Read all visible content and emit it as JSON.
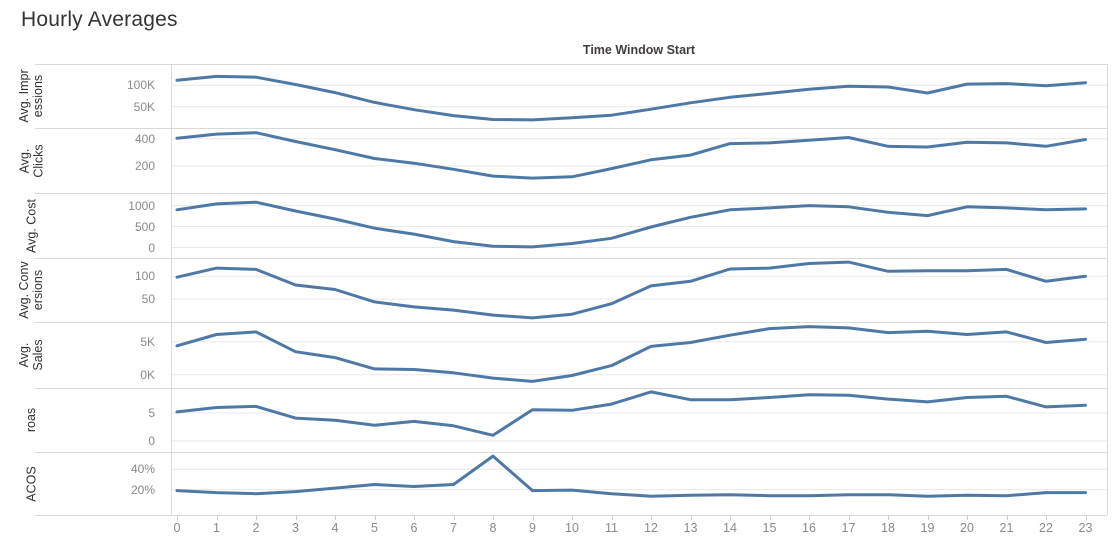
{
  "title": "Hourly Averages",
  "chart_data": {
    "type": "line",
    "title": "Hourly Averages",
    "x_axis_title": "Time Window Start",
    "x": [
      0,
      1,
      2,
      3,
      4,
      5,
      6,
      7,
      8,
      9,
      10,
      11,
      12,
      13,
      14,
      15,
      16,
      17,
      18,
      19,
      20,
      21,
      22,
      23
    ],
    "line_color": "#4e79a7",
    "grid": true,
    "legend": "none",
    "layout": "vertical small multiples, shared x axis, x labels at bottom, axis title on top",
    "series": [
      {
        "name": "Avg. Impressions",
        "label_lines": [
          "Avg. Impr",
          "essions"
        ],
        "ticks": [
          {
            "label": "100K",
            "value": 100000
          },
          {
            "label": "50K",
            "value": 50000
          }
        ],
        "ylim": [
          0,
          150000
        ],
        "values": [
          112000,
          121000,
          119000,
          102000,
          83000,
          60000,
          43000,
          29000,
          20000,
          19000,
          24000,
          30000,
          44000,
          59000,
          72000,
          81000,
          91000,
          98000,
          96000,
          82000,
          103000,
          104000,
          99000,
          106000
        ]
      },
      {
        "name": "Avg. Clicks",
        "label_lines": [
          "Avg.",
          "Clicks"
        ],
        "ticks": [
          {
            "label": "400",
            "value": 400
          },
          {
            "label": "200",
            "value": 200
          }
        ],
        "ylim": [
          0,
          480
        ],
        "values": [
          405,
          435,
          445,
          380,
          320,
          255,
          220,
          175,
          125,
          110,
          120,
          180,
          245,
          280,
          365,
          370,
          390,
          410,
          345,
          340,
          375,
          370,
          345,
          395
        ]
      },
      {
        "name": "Avg. Cost",
        "label_lines": [
          "Avg. Cost"
        ],
        "ticks": [
          {
            "label": "1000",
            "value": 1000
          },
          {
            "label": "500",
            "value": 500
          },
          {
            "label": "0",
            "value": 0
          }
        ],
        "ylim": [
          -250,
          1300
        ],
        "values": [
          900,
          1040,
          1080,
          870,
          680,
          460,
          320,
          140,
          30,
          15,
          95,
          220,
          490,
          720,
          900,
          945,
          1000,
          970,
          840,
          760,
          970,
          945,
          900,
          920
        ]
      },
      {
        "name": "Avg. Conversions",
        "label_lines": [
          "Avg. Conv",
          "ersions"
        ],
        "ticks": [
          {
            "label": "100",
            "value": 100
          },
          {
            "label": "50",
            "value": 50
          }
        ],
        "ylim": [
          0,
          140
        ],
        "values": [
          98,
          118,
          115,
          81,
          71,
          44,
          33,
          26,
          15,
          9,
          17,
          40,
          79,
          89,
          116,
          118,
          128,
          131,
          111,
          112,
          112,
          115,
          89,
          100
        ]
      },
      {
        "name": "Avg. Sales",
        "label_lines": [
          "Avg.",
          "Sales"
        ],
        "ticks": [
          {
            "label": "5K",
            "value": 5000
          },
          {
            "label": "0K",
            "value": 0
          }
        ],
        "ylim": [
          -2000,
          8000
        ],
        "values": [
          4400,
          6100,
          6500,
          3500,
          2600,
          900,
          800,
          300,
          -500,
          -1000,
          -100,
          1400,
          4300,
          4900,
          6000,
          7000,
          7300,
          7100,
          6400,
          6600,
          6100,
          6500,
          4900,
          5400
        ]
      },
      {
        "name": "roas",
        "label_lines": [
          "roas"
        ],
        "ticks": [
          {
            "label": "5",
            "value": 5
          },
          {
            "label": "0",
            "value": 0
          }
        ],
        "ylim": [
          -2,
          9.5
        ],
        "values": [
          5.2,
          6.0,
          6.2,
          4.1,
          3.7,
          2.8,
          3.5,
          2.7,
          1.0,
          5.6,
          5.5,
          6.6,
          8.8,
          7.4,
          7.4,
          7.8,
          8.3,
          8.2,
          7.5,
          7.0,
          7.8,
          8.0,
          6.1,
          6.4
        ]
      },
      {
        "name": "ACOS",
        "label_lines": [
          "ACOS"
        ],
        "ticks": [
          {
            "label": "40%",
            "value": 40
          },
          {
            "label": "20%",
            "value": 20
          }
        ],
        "ylim": [
          -5,
          57
        ],
        "values": [
          19,
          17,
          16,
          18,
          21.5,
          25,
          23,
          25,
          53,
          19,
          19.5,
          16,
          13.5,
          14.5,
          15,
          14,
          14,
          15,
          15,
          13.5,
          14.5,
          14,
          17,
          17
        ]
      }
    ]
  }
}
